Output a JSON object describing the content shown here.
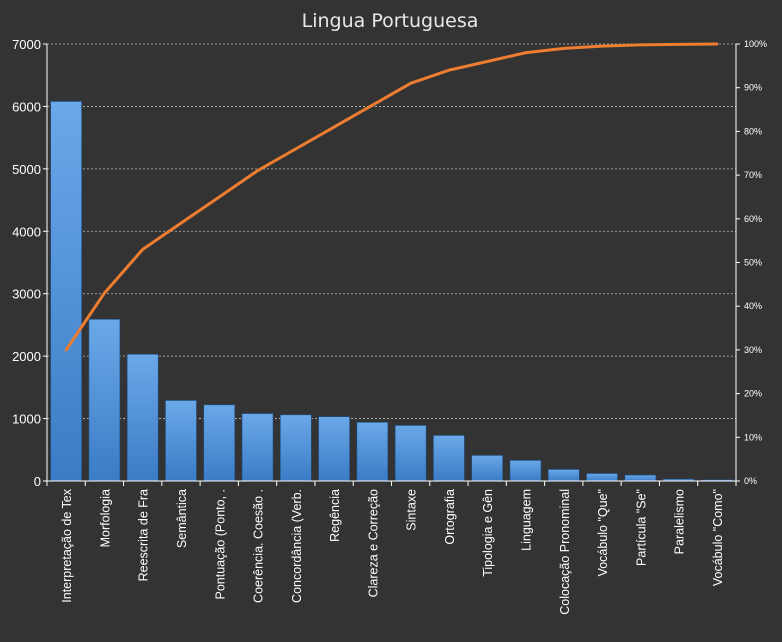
{
  "chart_data": {
    "type": "bar",
    "title": "Lingua Portuguesa",
    "categories": [
      "Interpretação de Tex",
      "Morfologia",
      "Reescrita de Fra",
      "Semântica",
      "Pontuação (Ponto, .",
      "Coerência. Coesão  .",
      "Concordância (Verb.",
      "Regência",
      "Clareza e Correção",
      "Sintaxe",
      "Ortografia",
      "Tipologia e Gên",
      "Linguagem",
      "Colocação Pronominal",
      "Vocábulo \"Que\"",
      "Partícula \"Se\"",
      "Paralelismo",
      "Vocábulo \"Como\""
    ],
    "series": [
      {
        "type": "bar",
        "values": [
          6080,
          2590,
          2030,
          1290,
          1220,
          1080,
          1060,
          1030,
          940,
          890,
          730,
          410,
          330,
          185,
          120,
          95,
          30,
          20
        ],
        "color": "#4a90d9"
      },
      {
        "type": "line",
        "axis": "right",
        "values": [
          30,
          43,
          53,
          59,
          65,
          71,
          76,
          81,
          86,
          91,
          94,
          96,
          98,
          99,
          99.5,
          99.8,
          99.9,
          100
        ],
        "color": "#ed7d31"
      }
    ],
    "ylim": [
      0,
      7000
    ],
    "yticks": [
      "0",
      "1000",
      "2000",
      "3000",
      "4000",
      "5000",
      "6000",
      "7000"
    ],
    "y2lim": [
      0,
      100
    ],
    "y2ticks": [
      "0%",
      "10%",
      "20%",
      "30%",
      "40%",
      "50%",
      "60%",
      "70%",
      "80%",
      "90%",
      "100%"
    ],
    "grid": true,
    "legend": "none"
  }
}
